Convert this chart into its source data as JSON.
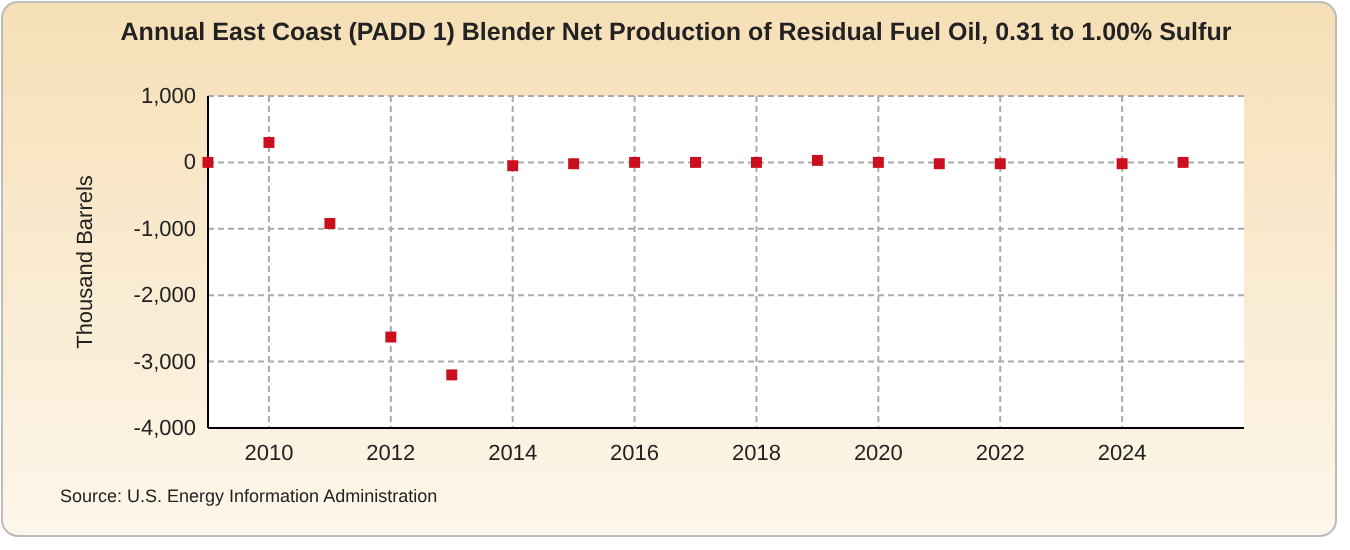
{
  "chart_data": {
    "type": "scatter",
    "title": "Annual East Coast (PADD 1) Blender Net Production of Residual Fuel Oil, 0.31 to 1.00% Sulfur",
    "ylabel": "Thousand Barrels",
    "annotations": [
      "Source: U.S. Energy Information Administration"
    ],
    "x": [
      2009,
      2010,
      2011,
      2012,
      2013,
      2014,
      2015,
      2016,
      2017,
      2018,
      2019,
      2020,
      2021,
      2022,
      2024,
      2025
    ],
    "series": [
      {
        "color": "#cc0f1f",
        "values": [
          0,
          300,
          -920,
          -2630,
          -3200,
          -50,
          -20,
          0,
          0,
          0,
          30,
          0,
          -20,
          -20,
          -20,
          0
        ]
      }
    ],
    "xlim": [
      2009,
      2026
    ],
    "xticks": [
      2010,
      2012,
      2014,
      2016,
      2018,
      2020,
      2022,
      2024
    ],
    "ylim": [
      -4000,
      1000
    ],
    "yticks": [
      {
        "value": -4000,
        "label": "-4,000"
      },
      {
        "value": -3000,
        "label": "-3,000"
      },
      {
        "value": -2000,
        "label": "-2,000"
      },
      {
        "value": -1000,
        "label": "-1,000"
      },
      0,
      {
        "value": 1000,
        "label": "1,000"
      }
    ],
    "grid": true,
    "marker": "square"
  }
}
